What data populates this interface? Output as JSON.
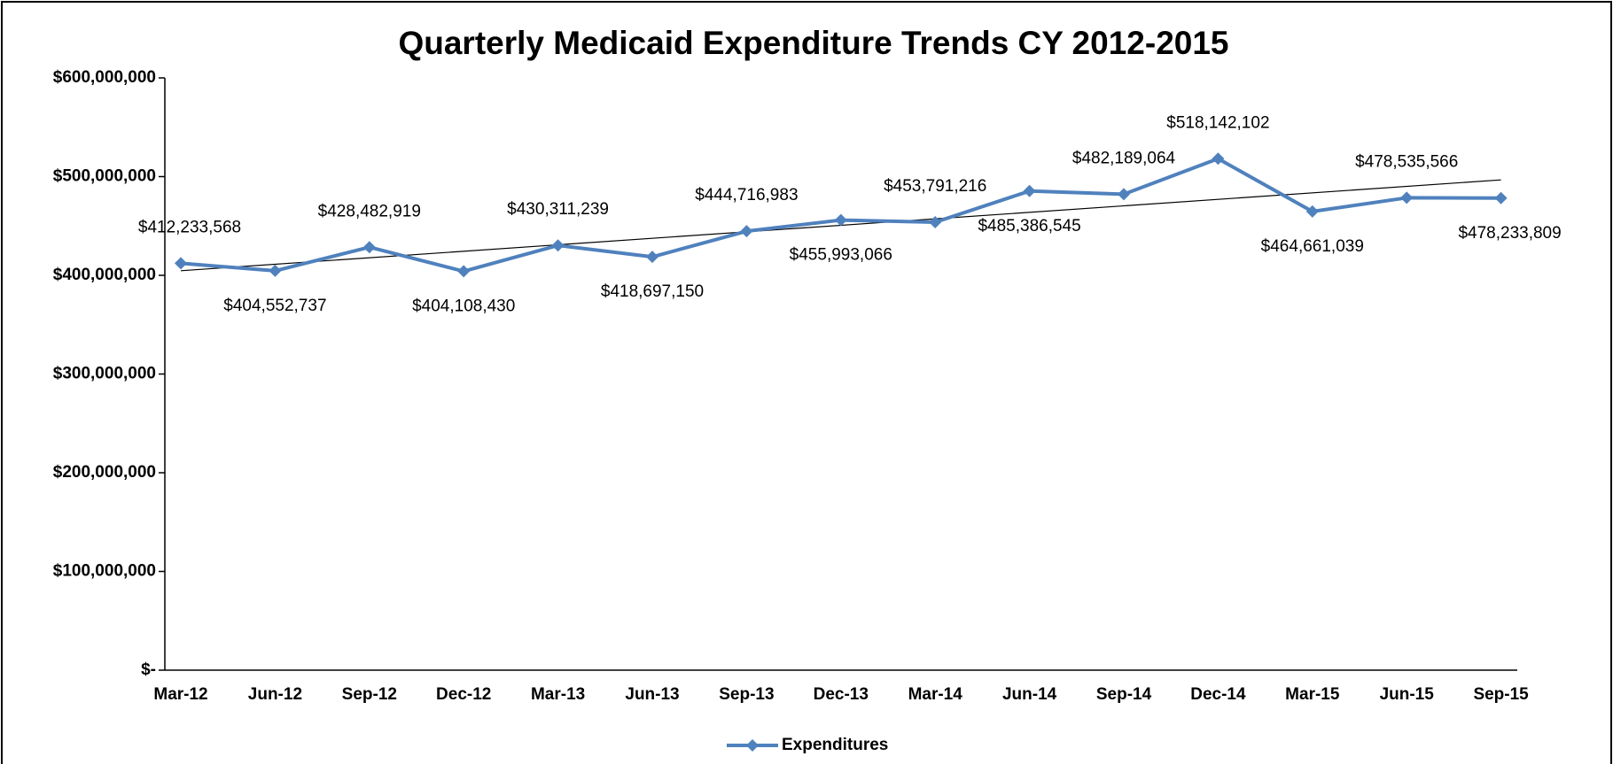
{
  "chart_data": {
    "type": "line",
    "title": "Quarterly Medicaid Expenditure Trends CY 2012-2015",
    "categories": [
      "Mar-12",
      "Jun-12",
      "Sep-12",
      "Dec-12",
      "Mar-13",
      "Jun-13",
      "Sep-13",
      "Dec-13",
      "Mar-14",
      "Jun-14",
      "Sep-14",
      "Dec-14",
      "Mar-15",
      "Jun-15",
      "Sep-15"
    ],
    "series": [
      {
        "name": "Expenditures",
        "color": "#4f81bd",
        "values": [
          412233568,
          404552737,
          428482919,
          404108430,
          430311239,
          418697150,
          444716983,
          455993066,
          453791216,
          485386545,
          482189064,
          518142102,
          464661039,
          478535566,
          478233809
        ],
        "value_labels": [
          "$412,233,568",
          "$404,552,737",
          "$428,482,919",
          "$404,108,430",
          "$430,311,239",
          "$418,697,150",
          "$444,716,983",
          "$455,993,066",
          "$453,791,216",
          "$485,386,545",
          "$482,189,064",
          "$518,142,102",
          "$464,661,039",
          "$478,535,566",
          "$478,233,809"
        ]
      }
    ],
    "trendline": "linear",
    "ylim": [
      0,
      600000000
    ],
    "yticks": [
      {
        "value": 0,
        "label": "$-"
      },
      {
        "value": 100000000,
        "label": "$100,000,000"
      },
      {
        "value": 200000000,
        "label": "$200,000,000"
      },
      {
        "value": 300000000,
        "label": "$300,000,000"
      },
      {
        "value": 400000000,
        "label": "$400,000,000"
      },
      {
        "value": 500000000,
        "label": "$500,000,000"
      },
      {
        "value": 600000000,
        "label": "$600,000,000"
      }
    ],
    "legend": "bottom"
  }
}
